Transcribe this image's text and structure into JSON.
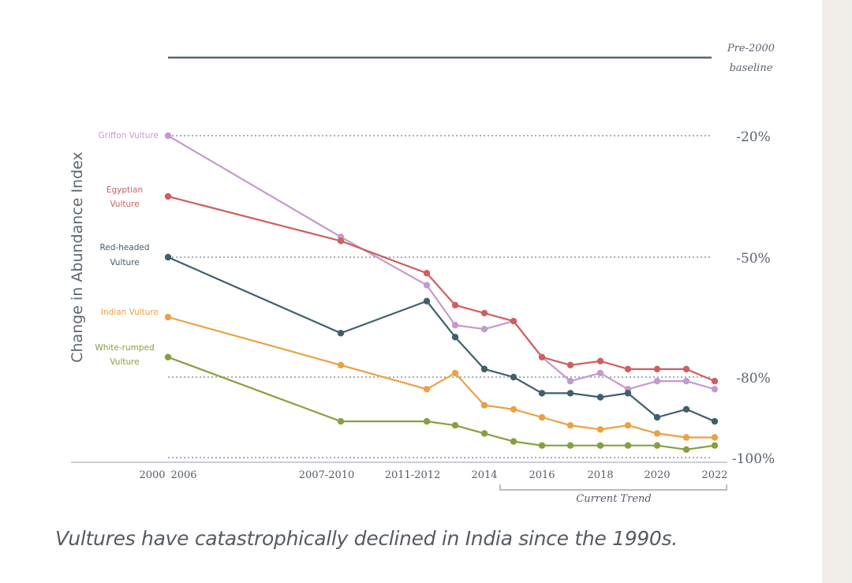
{
  "caption": "Vultures have catastrophically declined in India since the 1990s.",
  "colors": {
    "griffon": "#c39ad0",
    "egyptian": "#cf5f5f",
    "redheaded": "#3f5f6c",
    "indian": "#eba143",
    "whiterumped": "#86a03d",
    "baseline": "#54657a",
    "text": "#5b6470"
  },
  "chart_data": {
    "type": "line",
    "title": "",
    "ylabel": "Change in Abundance Index",
    "xlabel": "",
    "baseline_label": [
      "Pre-2000",
      "baseline"
    ],
    "ylim": [
      -100,
      0
    ],
    "y_ticks": [
      {
        "value": -20,
        "label": "-20%"
      },
      {
        "value": -50,
        "label": "-50%"
      },
      {
        "value": -80,
        "label": "-80%"
      },
      {
        "value": -100,
        "label": "-100%"
      }
    ],
    "x_tick_labels": [
      "2000",
      "2006",
      "2007-2010",
      "2011-2012",
      "2014",
      "2016",
      "2018",
      "2020",
      "2022"
    ],
    "bracket_label": "Current Trend",
    "grid": "dotted lines at -20%, -50%, -80%, -100%",
    "series": [
      {
        "name": "Griffon Vulture",
        "label_lines": [
          "Griffon Vulture"
        ],
        "color": "griffon",
        "points": [
          [
            "2000",
            -20
          ],
          [
            "2007-2010",
            -45
          ],
          [
            "2011-2012",
            -57
          ],
          [
            "2013",
            -67
          ],
          [
            "2014",
            -68
          ],
          [
            "2015",
            -66
          ],
          [
            "2016",
            -75
          ],
          [
            "2017",
            -81
          ],
          [
            "2018",
            -79
          ],
          [
            "2019",
            -83
          ],
          [
            "2020",
            -81
          ],
          [
            "2021",
            -81
          ],
          [
            "2022",
            -83
          ]
        ]
      },
      {
        "name": "Egyptian Vulture",
        "label_lines": [
          "Egyptian",
          "Vulture"
        ],
        "color": "egyptian",
        "points": [
          [
            "2000",
            -35
          ],
          [
            "2007-2010",
            -46
          ],
          [
            "2011-2012",
            -54
          ],
          [
            "2013",
            -62
          ],
          [
            "2014",
            -64
          ],
          [
            "2015",
            -66
          ],
          [
            "2016",
            -75
          ],
          [
            "2017",
            -77
          ],
          [
            "2018",
            -76
          ],
          [
            "2019",
            -78
          ],
          [
            "2020",
            -78
          ],
          [
            "2021",
            -78
          ],
          [
            "2022",
            -81
          ]
        ]
      },
      {
        "name": "Red-headed Vulture",
        "label_lines": [
          "Red-headed",
          "Vulture"
        ],
        "color": "redheaded",
        "points": [
          [
            "2000",
            -50
          ],
          [
            "2007-2010",
            -69
          ],
          [
            "2011-2012",
            -61
          ],
          [
            "2013",
            -70
          ],
          [
            "2014",
            -78
          ],
          [
            "2015",
            -80
          ],
          [
            "2016",
            -84
          ],
          [
            "2017",
            -84
          ],
          [
            "2018",
            -85
          ],
          [
            "2019",
            -84
          ],
          [
            "2020",
            -90
          ],
          [
            "2021",
            -88
          ],
          [
            "2022",
            -91
          ]
        ]
      },
      {
        "name": "Indian Vulture",
        "label_lines": [
          "Indian Vulture"
        ],
        "color": "indian",
        "points": [
          [
            "2000",
            -65
          ],
          [
            "2007-2010",
            -77
          ],
          [
            "2011-2012",
            -83
          ],
          [
            "2013",
            -79
          ],
          [
            "2014",
            -87
          ],
          [
            "2015",
            -88
          ],
          [
            "2016",
            -90
          ],
          [
            "2017",
            -92
          ],
          [
            "2018",
            -93
          ],
          [
            "2019",
            -92
          ],
          [
            "2020",
            -94
          ],
          [
            "2021",
            -95
          ],
          [
            "2022",
            -95
          ]
        ]
      },
      {
        "name": "White-rumped Vulture",
        "label_lines": [
          "White-rumped",
          "Vulture"
        ],
        "color": "whiterumped",
        "points": [
          [
            "2000",
            -75
          ],
          [
            "2007-2010",
            -91
          ],
          [
            "2011-2012",
            -91
          ],
          [
            "2013",
            -92
          ],
          [
            "2014",
            -94
          ],
          [
            "2015",
            -96
          ],
          [
            "2016",
            -97
          ],
          [
            "2017",
            -97
          ],
          [
            "2018",
            -97
          ],
          [
            "2019",
            -97
          ],
          [
            "2020",
            -97
          ],
          [
            "2021",
            -98
          ],
          [
            "2022",
            -97
          ]
        ]
      }
    ]
  }
}
